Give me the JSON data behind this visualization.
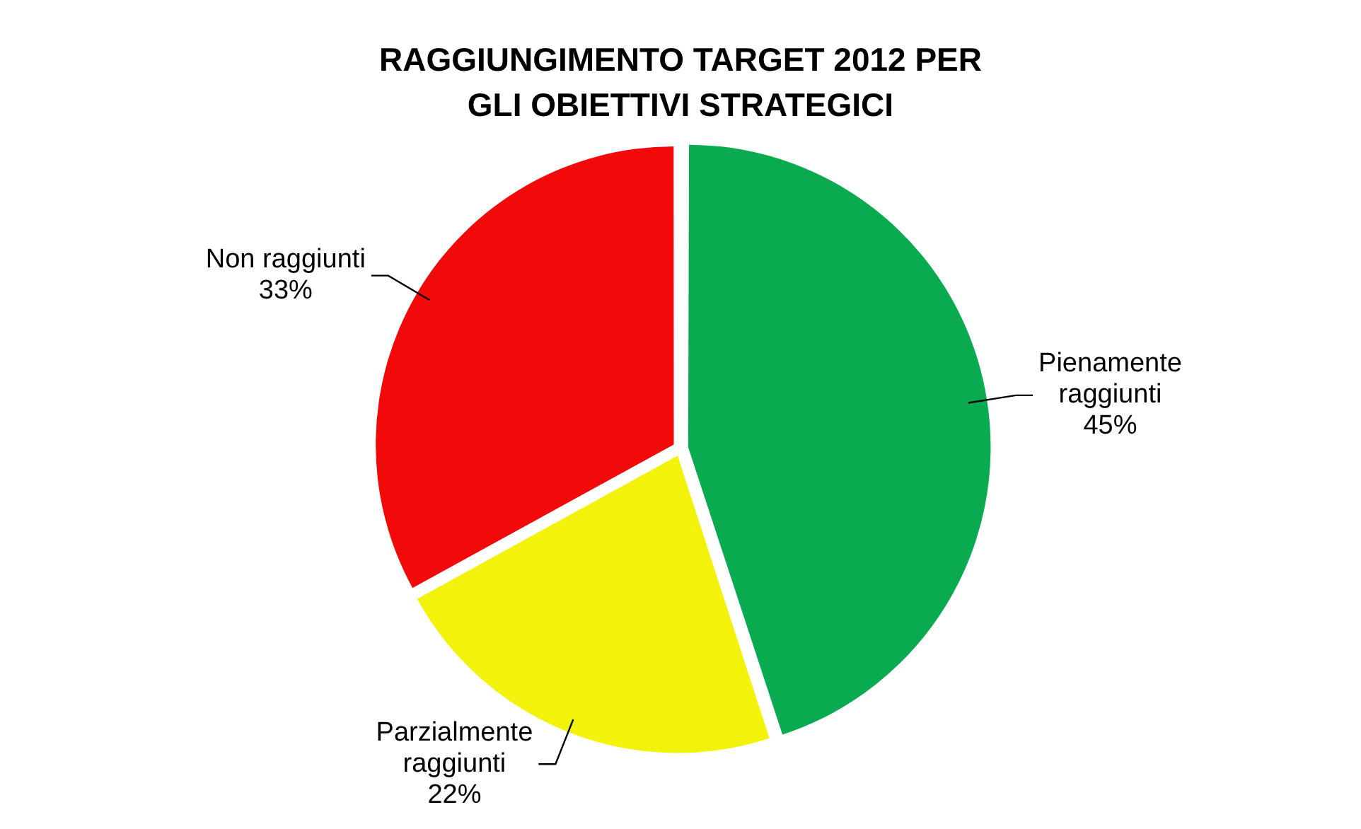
{
  "chart_data": {
    "type": "pie",
    "title": "RAGGIUNGIMENTO TARGET 2012 PER GLI OBIETTIVI STRATEGICI",
    "categories": [
      "Pienamente raggiunti",
      "Parzialmente raggiunti",
      "Non raggiunti"
    ],
    "values": [
      45,
      22,
      33
    ],
    "value_labels": [
      "45%",
      "22%",
      "33%"
    ],
    "colors": [
      "#0aab50",
      "#f2f20a",
      "#f20a0a"
    ],
    "legend": false
  }
}
